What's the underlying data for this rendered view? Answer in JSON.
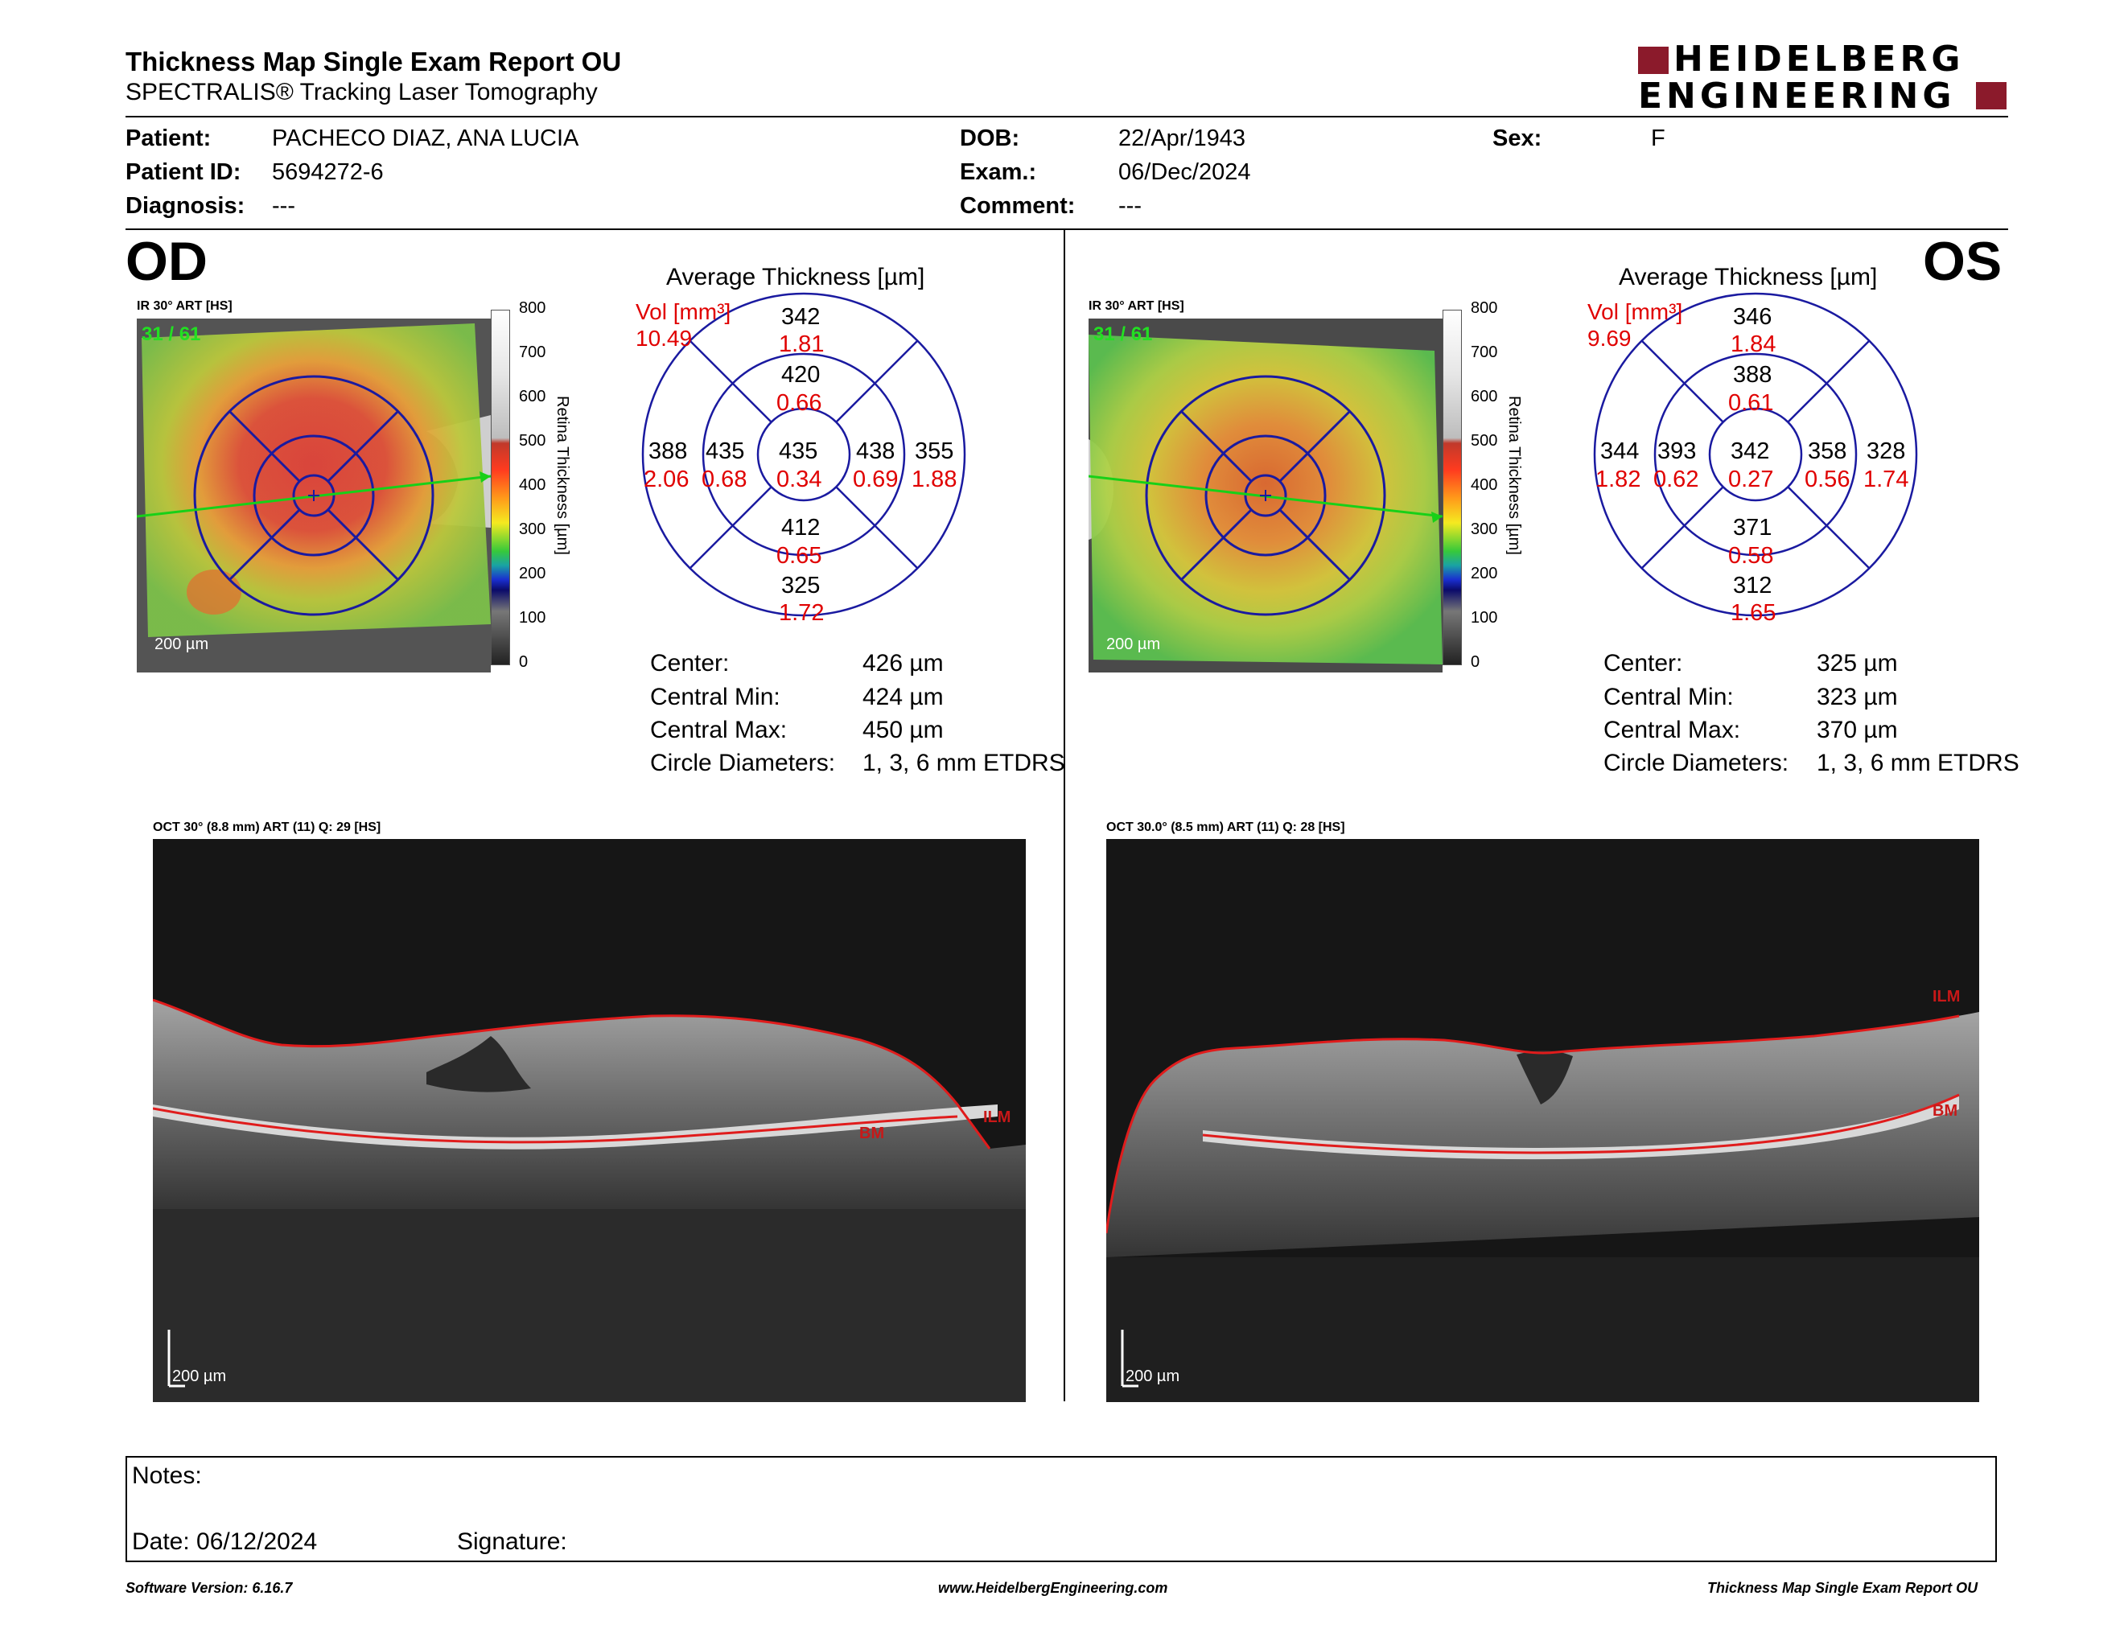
{
  "header": {
    "title": "Thickness Map Single Exam Report OU",
    "subtitle": "SPECTRALIS® Tracking Laser Tomography",
    "logo_line1": "HEIDELBERG",
    "logo_line2": "ENGINEERING",
    "logo_color": "#8b1a2b"
  },
  "patient": {
    "patient_label": "Patient:",
    "patient_value": "PACHECO DIAZ, ANA LUCIA",
    "id_label": "Patient ID:",
    "id_value": "5694272-6",
    "diagnosis_label": "Diagnosis:",
    "diagnosis_value": "---",
    "dob_label": "DOB:",
    "dob_value": "22/Apr/1943",
    "exam_label": "Exam.:",
    "exam_value": "06/Dec/2024",
    "comment_label": "Comment:",
    "comment_value": "---",
    "sex_label": "Sex:",
    "sex_value": "F"
  },
  "od": {
    "eye": "OD",
    "map_title": "IR 30° ART [HS]",
    "frame": "31 / 61",
    "scale": "200 µm",
    "avg_title": "Average Thickness [µm]",
    "vol_label": "Vol [mm³]",
    "vol_value": "10.49",
    "grid": {
      "center_t": "435",
      "center_v": "0.34",
      "inner_sup_t": "420",
      "inner_sup_v": "0.66",
      "inner_inf_t": "412",
      "inner_inf_v": "0.65",
      "inner_left_t": "435",
      "inner_left_v": "0.68",
      "inner_right_t": "438",
      "inner_right_v": "0.69",
      "outer_sup_t": "342",
      "outer_sup_v": "1.81",
      "outer_inf_t": "325",
      "outer_inf_v": "1.72",
      "outer_left_t": "388",
      "outer_left_v": "2.06",
      "outer_right_t": "355",
      "outer_right_v": "1.88"
    },
    "stats": {
      "center_label": "Center:",
      "center_value": "426 µm",
      "min_label": "Central Min:",
      "min_value": "424 µm",
      "max_label": "Central Max:",
      "max_value": "450 µm",
      "diam_label": "Circle Diameters:",
      "diam_value": "1, 3, 6 mm ETDRS"
    },
    "oct_title": "OCT 30° (8.8 mm) ART (11) Q: 29 [HS]",
    "oct_scale": "200 µm",
    "ilm": "ILM",
    "bm": "BM"
  },
  "os": {
    "eye": "OS",
    "map_title": "IR 30° ART [HS]",
    "frame": "31 / 61",
    "scale": "200 µm",
    "avg_title": "Average Thickness [µm]",
    "vol_label": "Vol [mm³]",
    "vol_value": "9.69",
    "grid": {
      "center_t": "342",
      "center_v": "0.27",
      "inner_sup_t": "388",
      "inner_sup_v": "0.61",
      "inner_inf_t": "371",
      "inner_inf_v": "0.58",
      "inner_left_t": "393",
      "inner_left_v": "0.62",
      "inner_right_t": "358",
      "inner_right_v": "0.56",
      "outer_sup_t": "346",
      "outer_sup_v": "1.84",
      "outer_inf_t": "312",
      "outer_inf_v": "1.65",
      "outer_left_t": "344",
      "outer_left_v": "1.82",
      "outer_right_t": "328",
      "outer_right_v": "1.74"
    },
    "stats": {
      "center_label": "Center:",
      "center_value": "325 µm",
      "min_label": "Central Min:",
      "min_value": "323 µm",
      "max_label": "Central Max:",
      "max_value": "370 µm",
      "diam_label": "Circle Diameters:",
      "diam_value": "1, 3, 6 mm ETDRS"
    },
    "oct_title": "OCT 30.0° (8.5 mm) ART (11) Q: 28 [HS]",
    "oct_scale": "200 µm",
    "ilm": "ILM",
    "bm": "BM"
  },
  "colorbar": {
    "ticks": [
      "800",
      "700",
      "600",
      "500",
      "400",
      "300",
      "200",
      "100",
      "0"
    ],
    "label": "Retina Thickness [µm]"
  },
  "notes": {
    "notes_label": "Notes:",
    "date_label": "Date: 06/12/2024",
    "signature_label": "Signature:"
  },
  "footer": {
    "software": "Software Version: 6.16.7",
    "website": "www.HeidelbergEngineering.com",
    "report": "Thickness Map Single Exam Report OU"
  },
  "colors": {
    "grid_blue": "#1a1aa0",
    "volume_red": "#e00000",
    "layer_red": "#d11a1a"
  }
}
